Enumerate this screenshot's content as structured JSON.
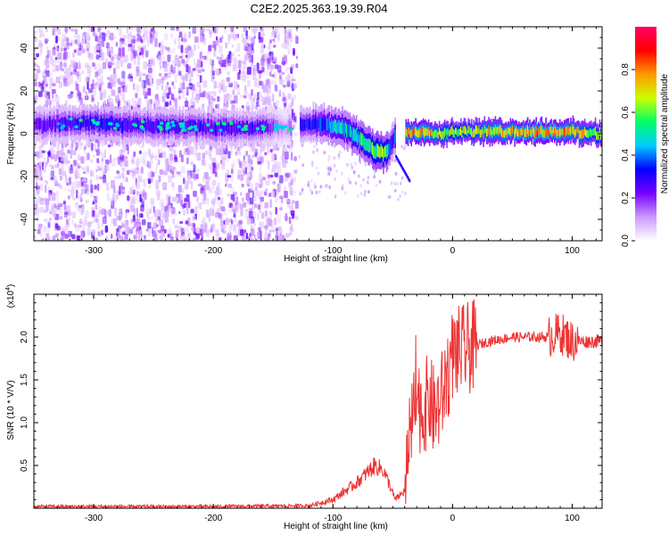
{
  "title": "C2E2.2025.363.19.39.R04",
  "chart_data": [
    {
      "type": "heatmap",
      "name": "spectrogram",
      "xlabel": "Height of straight line (km)",
      "ylabel": "Frequency (Hz)",
      "xlim": [
        -350,
        125
      ],
      "ylim": [
        -50,
        50
      ],
      "x_ticks": [
        -300,
        -200,
        -100,
        0,
        100
      ],
      "y_ticks": [
        -40,
        -20,
        0,
        20,
        40
      ],
      "colorbar": {
        "label": "Normalized spectral amplitude",
        "range": [
          0,
          1
        ],
        "ticks": [
          "0.0",
          "0.2",
          "0.4",
          "0.6",
          "0.8"
        ],
        "colors": [
          "#ffffff",
          "#cc99ff",
          "#7700ff",
          "#0000ff",
          "#00ccff",
          "#00ff66",
          "#ccff00",
          "#ff9900",
          "#ff0000",
          "#ff0066"
        ]
      },
      "signal_track": {
        "x": [
          -350,
          -320,
          -300,
          -270,
          -250,
          -220,
          -200,
          -180,
          -160,
          -140,
          -130,
          -120,
          -110,
          -100,
          -90,
          -80,
          -70,
          -65,
          -60,
          -55,
          -50,
          -45,
          -40,
          -35,
          -30,
          -20,
          -10,
          0,
          20,
          40,
          60,
          80,
          100,
          125
        ],
        "y": [
          4,
          5,
          5,
          4,
          4,
          3,
          3,
          3,
          3,
          3,
          4,
          4,
          5,
          4,
          2,
          -2,
          -6,
          -8,
          -9,
          -9,
          -3,
          0,
          1,
          1,
          1,
          1,
          0,
          1,
          1,
          1,
          1,
          1,
          1,
          0
        ],
        "amplitude": [
          0.25,
          0.3,
          0.35,
          0.3,
          0.3,
          0.3,
          0.3,
          0.28,
          0.28,
          0.1,
          0.3,
          0.35,
          0.4,
          0.5,
          0.5,
          0.55,
          0.6,
          0.65,
          0.7,
          0.6,
          0.3,
          0.8,
          0.8,
          0.8,
          0.85,
          0.8,
          0.75,
          0.7,
          0.75,
          0.8,
          0.85,
          0.85,
          0.8,
          0.7
        ]
      },
      "noise_region_x": [
        -350,
        -130
      ]
    },
    {
      "type": "line",
      "name": "snr",
      "xlabel": "Height of straight line (km)",
      "ylabel": "SNR (10 * V/V)",
      "multiplier_label": "(x10",
      "multiplier_exp": "4",
      "xlim": [
        -350,
        125
      ],
      "ylim": [
        0,
        2.5
      ],
      "x_ticks": [
        -300,
        -200,
        -100,
        0,
        100
      ],
      "y_ticks": [
        "0.5",
        "1.0",
        "1.5",
        "2.0"
      ],
      "color": "#ee3333",
      "envelope": {
        "x": [
          -350,
          -200,
          -120,
          -100,
          -80,
          -65,
          -58,
          -52,
          -48,
          -40,
          -35,
          -30,
          -25,
          -20,
          -15,
          -10,
          -5,
          0,
          10,
          20,
          30,
          50,
          80,
          90,
          95,
          100,
          110,
          125
        ],
        "y": [
          0.02,
          0.02,
          0.03,
          0.1,
          0.3,
          0.5,
          0.45,
          0.25,
          0.1,
          0.2,
          0.9,
          1.3,
          1.1,
          1.3,
          1.1,
          1.25,
          1.5,
          1.8,
          1.85,
          1.9,
          1.95,
          2.0,
          2.0,
          2.05,
          2.0,
          1.95,
          1.95,
          1.95
        ]
      }
    }
  ]
}
